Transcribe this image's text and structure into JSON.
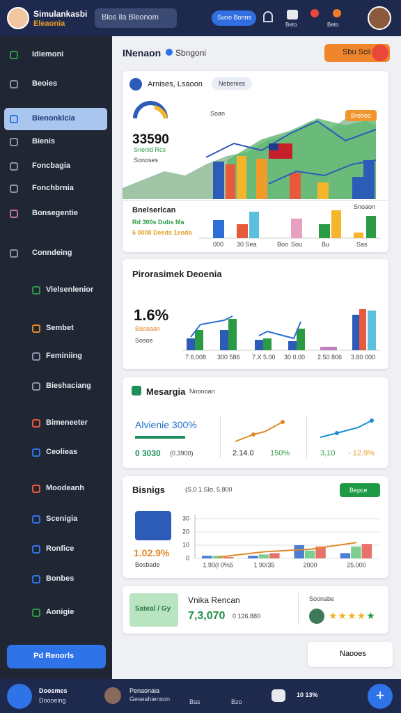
{
  "header": {
    "brand": "Simulankasbi",
    "sub": "Eleaonia",
    "search": "Blos ila Bleonom",
    "button": "Suno Bonns",
    "icon_labels": [
      "Beto",
      "Beto"
    ]
  },
  "sidebar": {
    "items": [
      "Idiemoni",
      "Beoies",
      "Bienonklcia",
      "Bienis",
      "Foncbagia",
      "Fonchbrnia",
      "Bonsegentie",
      "Conndeing",
      "Vielsenlenior",
      "Sembet",
      "Feminiing",
      "Bieshaciang",
      "Bimeneeter",
      "Ceolieas",
      "Moodeanh",
      "Scenigia",
      "Ronfice",
      "Bonbes",
      "Aonigie"
    ],
    "button": "Pd Renorls"
  },
  "page": {
    "title": "INenaon",
    "subtitle": "Sbngoni",
    "action": "Sbu Scii"
  },
  "card1": {
    "title": "Arnises, Lsaoon",
    "chip": "Nebenies",
    "big": "33590",
    "label1": "Snenid Rcs",
    "label2": "Sonoses",
    "tag": "Soan",
    "badge": "Brebeo",
    "sub_title": "Bnelserlcan",
    "line1": "Rd 300s Dubs Ma",
    "line2": "6 0008 Deeds 1eoda",
    "right_title": "Snoaon",
    "x_labels": [
      "000",
      "30 Sea",
      "Boo",
      "Sou",
      "Bu",
      "Sas"
    ]
  },
  "card2": {
    "title": "Pirorasimek Deoenia",
    "big": "1.6%",
    "label1": "Baoaaan",
    "label2": "Sosoe",
    "x_labels": [
      "7.6.008",
      "300 586",
      "7.X 5.00",
      "30 0.00",
      "2.50 806",
      "3.80 000"
    ]
  },
  "card3": {
    "title": "Mesargia",
    "tag": "Nooooan",
    "headline": "Alvienie 300%",
    "v1": "0 3030",
    "v2": "(0.3900)",
    "v3": "2.14.0",
    "v4": "150%",
    "v5": "3,10",
    "v6": "- 12.9%"
  },
  "card4": {
    "title": "Bisnigs",
    "sub": "(S.0 1 SIo, 5.800",
    "button": "Bepce",
    "big": "1.02.9%",
    "label": "Bosbade",
    "chart": {
      "type": "bar",
      "categories": [
        "1.90(I 0%5",
        "1 90/35",
        "2000",
        "25.000"
      ],
      "ylim": [
        0,
        30
      ],
      "yticks": [
        0,
        10,
        20,
        30
      ],
      "series": [
        {
          "color": "#4a7fd4",
          "values": [
            2,
            2,
            10,
            4
          ],
          "kind": "bar"
        },
        {
          "color": "#7ccf8f",
          "values": [
            2,
            3,
            6,
            9
          ],
          "kind": "bar"
        },
        {
          "color": "#e7726c",
          "values": [
            1,
            4,
            9,
            11
          ],
          "kind": "bar"
        },
        {
          "color": "#e08a2a",
          "values": [
            1,
            5,
            7,
            12
          ],
          "kind": "line"
        }
      ]
    }
  },
  "card5": {
    "badge": "Sateal / Gy",
    "title": "Vnika Rencan",
    "big": "7,3,070",
    "sub": "0 126.880",
    "right": "Soonabe"
  },
  "float": "Naooes",
  "bottom_bar": {
    "left1": "Doosmes",
    "left2": "Doooeing",
    "mid1": "Penaonaia",
    "mid2": "Geseahienson",
    "i1": "Bas",
    "i2": "Bzo",
    "right": "10 13%"
  }
}
